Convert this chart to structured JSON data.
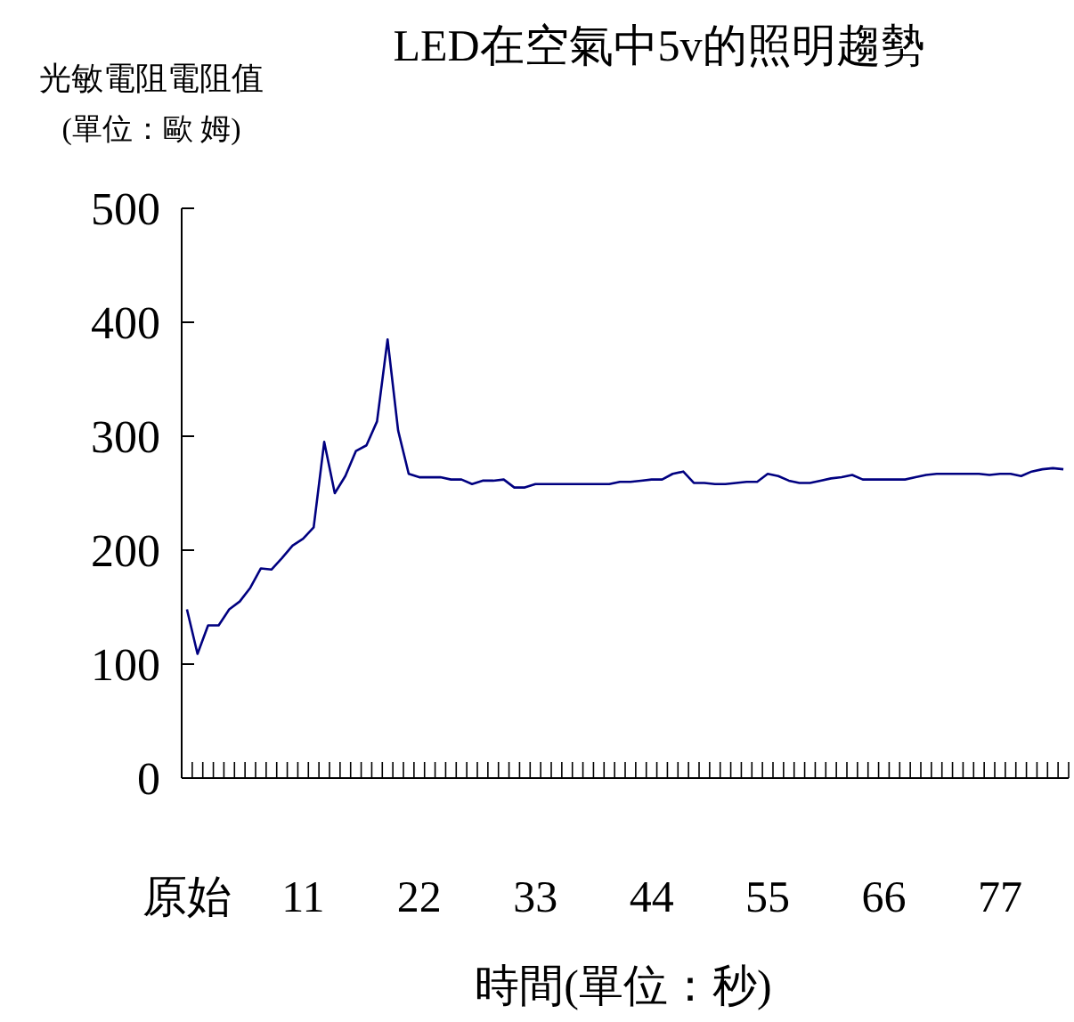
{
  "chart_data": {
    "type": "line",
    "title": "LED在空氣中5v的照明趨勢",
    "ylabel": "光敏電阻電阻值\n(單位：歐 姆)",
    "xlabel": "時間(單位：秒)",
    "categories": [
      "原始",
      null,
      null,
      null,
      null,
      null,
      null,
      null,
      null,
      null,
      null,
      "11",
      null,
      null,
      null,
      null,
      null,
      null,
      null,
      null,
      null,
      null,
      "22",
      null,
      null,
      null,
      null,
      null,
      null,
      null,
      null,
      null,
      null,
      "33",
      null,
      null,
      null,
      null,
      null,
      null,
      null,
      null,
      null,
      null,
      "44",
      null,
      null,
      null,
      null,
      null,
      null,
      null,
      null,
      null,
      null,
      "55",
      null,
      null,
      null,
      null,
      null,
      null,
      null,
      null,
      null,
      null,
      "66",
      null,
      null,
      null,
      null,
      null,
      null,
      null,
      null,
      null,
      null,
      "77",
      null,
      null,
      null,
      null,
      null,
      null
    ],
    "series": [
      {
        "color": "#000080",
        "values": [
          148,
          109,
          134,
          134,
          148,
          155,
          167,
          184,
          183,
          193,
          204,
          210,
          220,
          295,
          250,
          265,
          287,
          292,
          313,
          385,
          305,
          267,
          264,
          264,
          264,
          262,
          262,
          258,
          261,
          261,
          262,
          255,
          255,
          258,
          258,
          258,
          258,
          258,
          258,
          258,
          258,
          260,
          260,
          261,
          262,
          262,
          267,
          269,
          259,
          259,
          258,
          258,
          259,
          260,
          260,
          267,
          265,
          261,
          259,
          259,
          261,
          263,
          264,
          266,
          262,
          262,
          262,
          262,
          262,
          264,
          266,
          267,
          267,
          267,
          267,
          267,
          266,
          267,
          267,
          265,
          269,
          271,
          272,
          271
        ]
      }
    ],
    "ylim": [
      0,
      500
    ],
    "yticks": [
      0,
      100,
      200,
      300,
      400,
      500
    ],
    "grid": false,
    "marker": "none",
    "line_style": "solid"
  }
}
